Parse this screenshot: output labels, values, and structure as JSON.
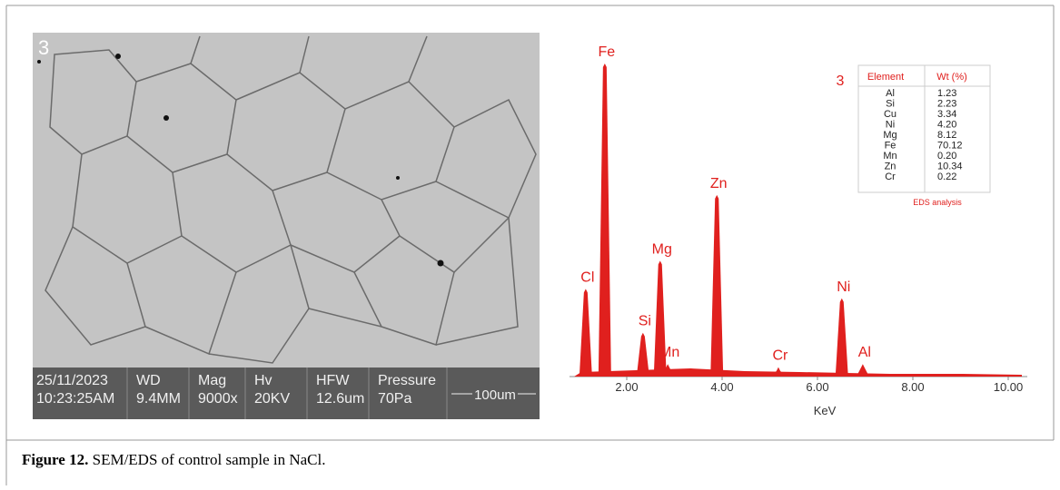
{
  "sem": {
    "label": "3",
    "info": [
      [
        "25/11/2023",
        "10:23:25AM"
      ],
      [
        "WD",
        "9.4MM"
      ],
      [
        "Mag",
        "9000x"
      ],
      [
        "Hv",
        "20KV"
      ],
      [
        "HFW",
        "12.6um"
      ],
      [
        "Pressure",
        "70Pa"
      ]
    ],
    "scale_bar": "100um"
  },
  "chart_data": {
    "type": "spectrum",
    "xlabel": "KeV",
    "xlim": [
      0.8,
      10.4
    ],
    "xticks": [
      {
        "value": 2,
        "label": "2.00"
      },
      {
        "value": 4,
        "label": "4.00"
      },
      {
        "value": 6,
        "label": "6.00"
      },
      {
        "value": 8,
        "label": "8.00"
      },
      {
        "value": 10,
        "label": "10.00"
      }
    ],
    "color": "#e0201e",
    "peaks": [
      {
        "label": "Cl",
        "x": 1.14,
        "height": 28
      },
      {
        "label": "Fe",
        "x": 1.54,
        "height": 100
      },
      {
        "label": "Si",
        "x": 2.34,
        "height": 14
      },
      {
        "label": "Mg",
        "x": 2.7,
        "height": 37
      },
      {
        "label": "Mn",
        "x": 2.86,
        "height": 4
      },
      {
        "label": "Zn",
        "x": 3.89,
        "height": 58
      },
      {
        "label": "Cr",
        "x": 5.18,
        "height": 3
      },
      {
        "label": "Ni",
        "x": 6.51,
        "height": 25
      },
      {
        "label": "Al",
        "x": 6.95,
        "height": 4
      }
    ]
  },
  "table": {
    "label": "3",
    "header": [
      "Element",
      "Wt (%)"
    ],
    "rows": [
      [
        "Al",
        "1.23"
      ],
      [
        "Si",
        "2.23"
      ],
      [
        "Cu",
        "3.34"
      ],
      [
        "Ni",
        "4.20"
      ],
      [
        "Mg",
        "8.12"
      ],
      [
        "Fe",
        "70.12"
      ],
      [
        "Mn",
        "0.20"
      ],
      [
        "Zn",
        "10.34"
      ],
      [
        "Cr",
        "0.22"
      ]
    ],
    "caption": "EDS analysis"
  },
  "caption": {
    "label": "Figure 12.",
    "text": " SEM/EDS of control sample in NaCl."
  }
}
